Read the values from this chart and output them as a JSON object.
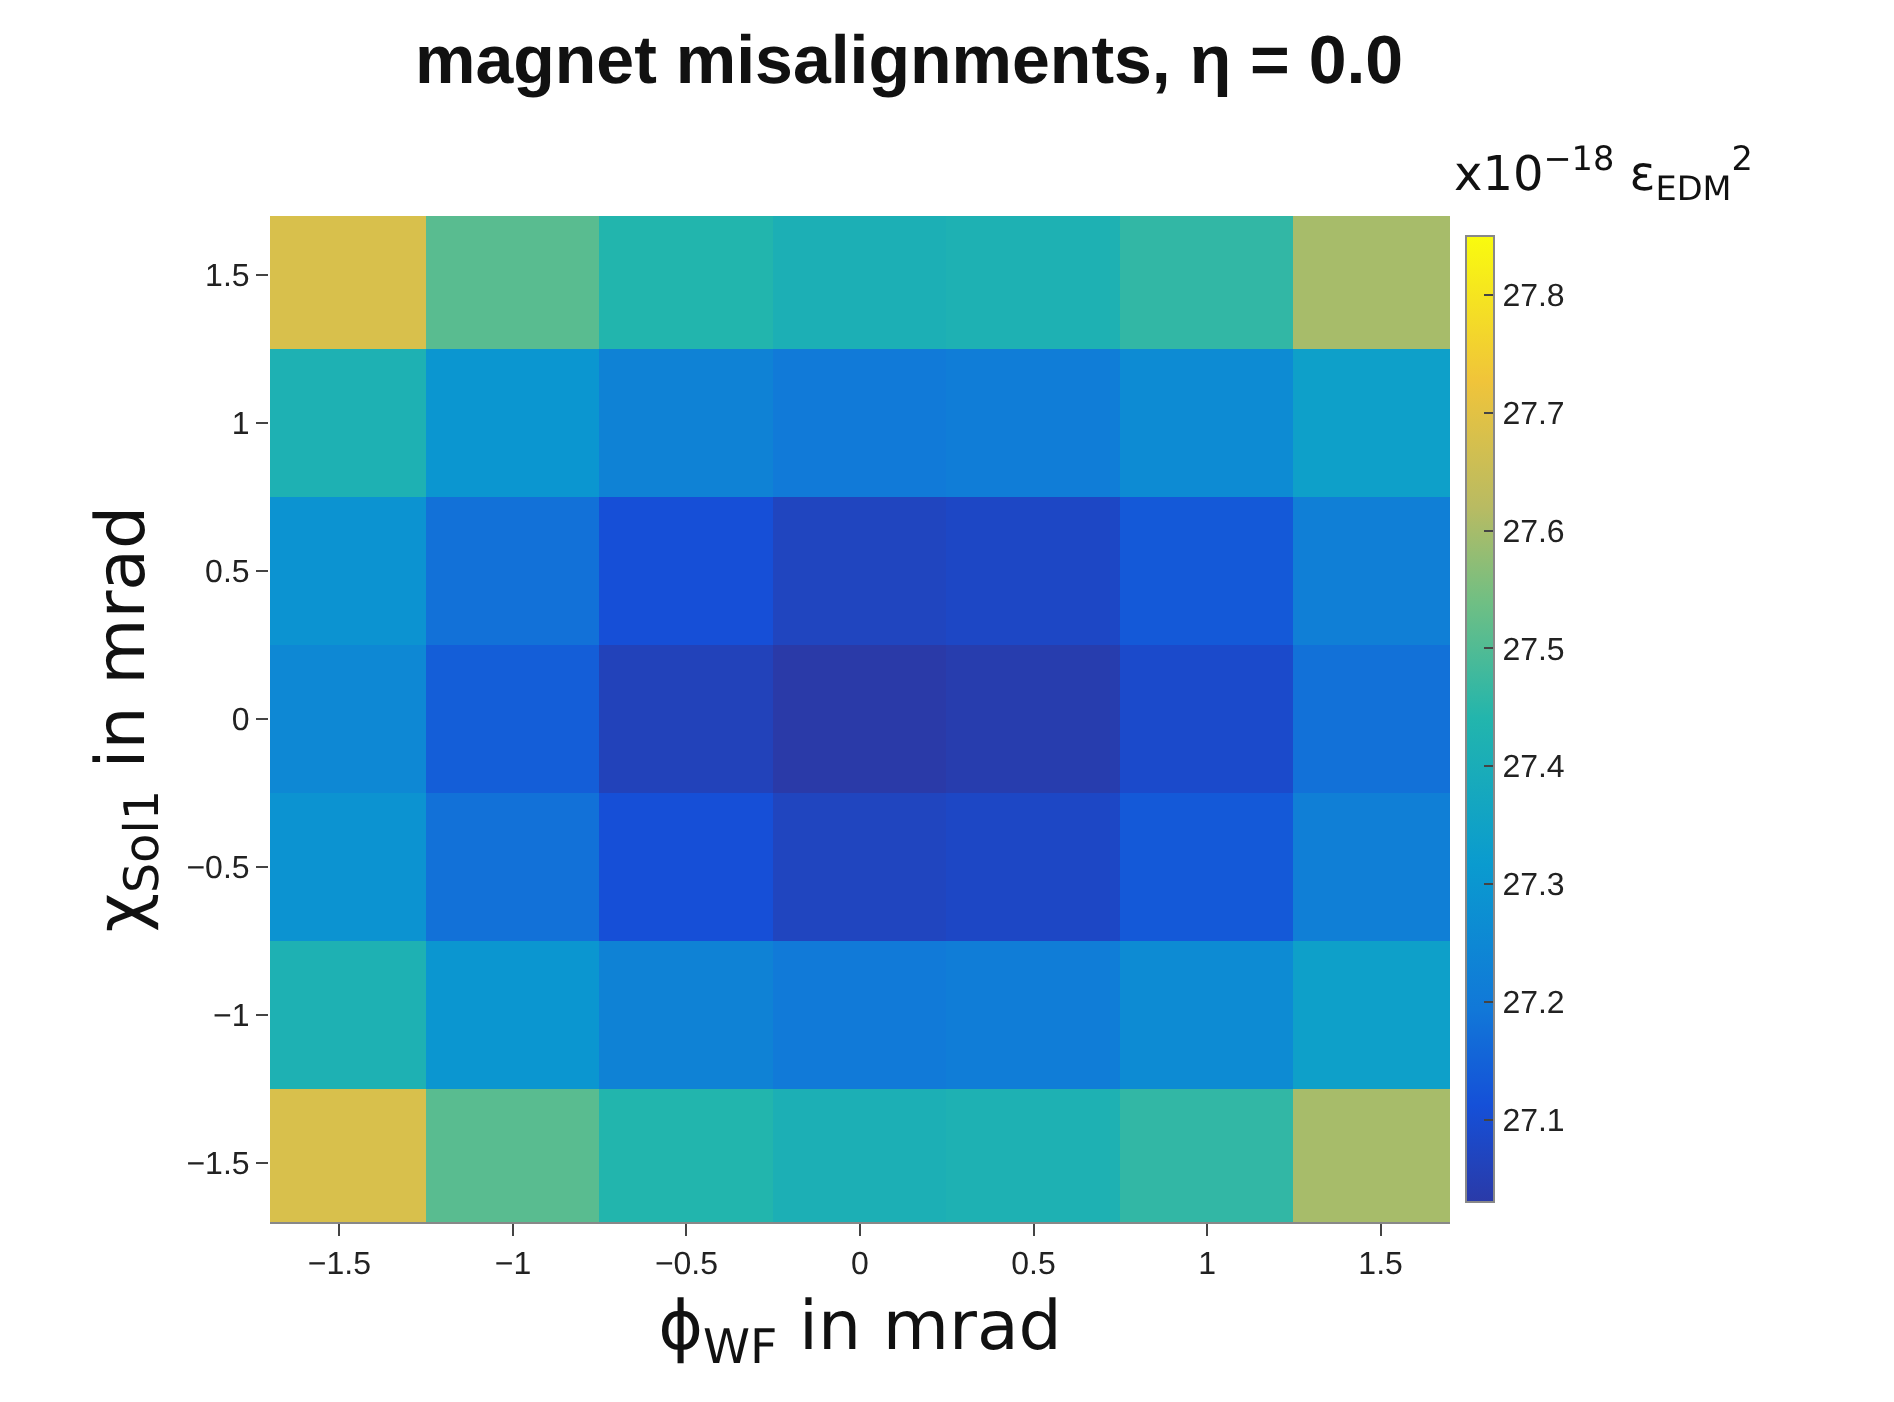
{
  "chart_data": {
    "type": "heatmap",
    "title": "magnet misalignments, η = 0.0",
    "xlabel": "ϕ$_{WF}$ in mrad",
    "ylabel": "χ$_{Sol1}$ in mrad",
    "clabel": "x10$^{−18}$ ε$_{EDM}$$^{2}$",
    "categories": [
      "−1.5",
      "−1",
      "−0.5",
      "0",
      "0.5",
      "1",
      "1.5"
    ],
    "y_categories": [
      "1.5",
      "1",
      "0.5",
      "0",
      "−0.5",
      "−1",
      "−1.5"
    ],
    "cells": [
      [
        27.68,
        27.51,
        27.44,
        27.41,
        27.42,
        27.46,
        27.6
      ],
      [
        27.42,
        27.3,
        27.23,
        27.2,
        27.21,
        27.26,
        27.34
      ],
      [
        27.29,
        27.18,
        27.11,
        27.07,
        27.08,
        27.13,
        27.22
      ],
      [
        27.25,
        27.14,
        27.06,
        27.03,
        27.04,
        27.09,
        27.18
      ],
      [
        27.29,
        27.18,
        27.11,
        27.07,
        27.08,
        27.13,
        27.22
      ],
      [
        27.42,
        27.3,
        27.23,
        27.2,
        27.21,
        27.26,
        27.34
      ],
      [
        27.68,
        27.51,
        27.44,
        27.41,
        27.42,
        27.46,
        27.6
      ]
    ],
    "clim": [
      27.03,
      27.85
    ],
    "cticks": [
      27.1,
      27.2,
      27.3,
      27.4,
      27.5,
      27.6,
      27.7,
      27.8
    ]
  }
}
